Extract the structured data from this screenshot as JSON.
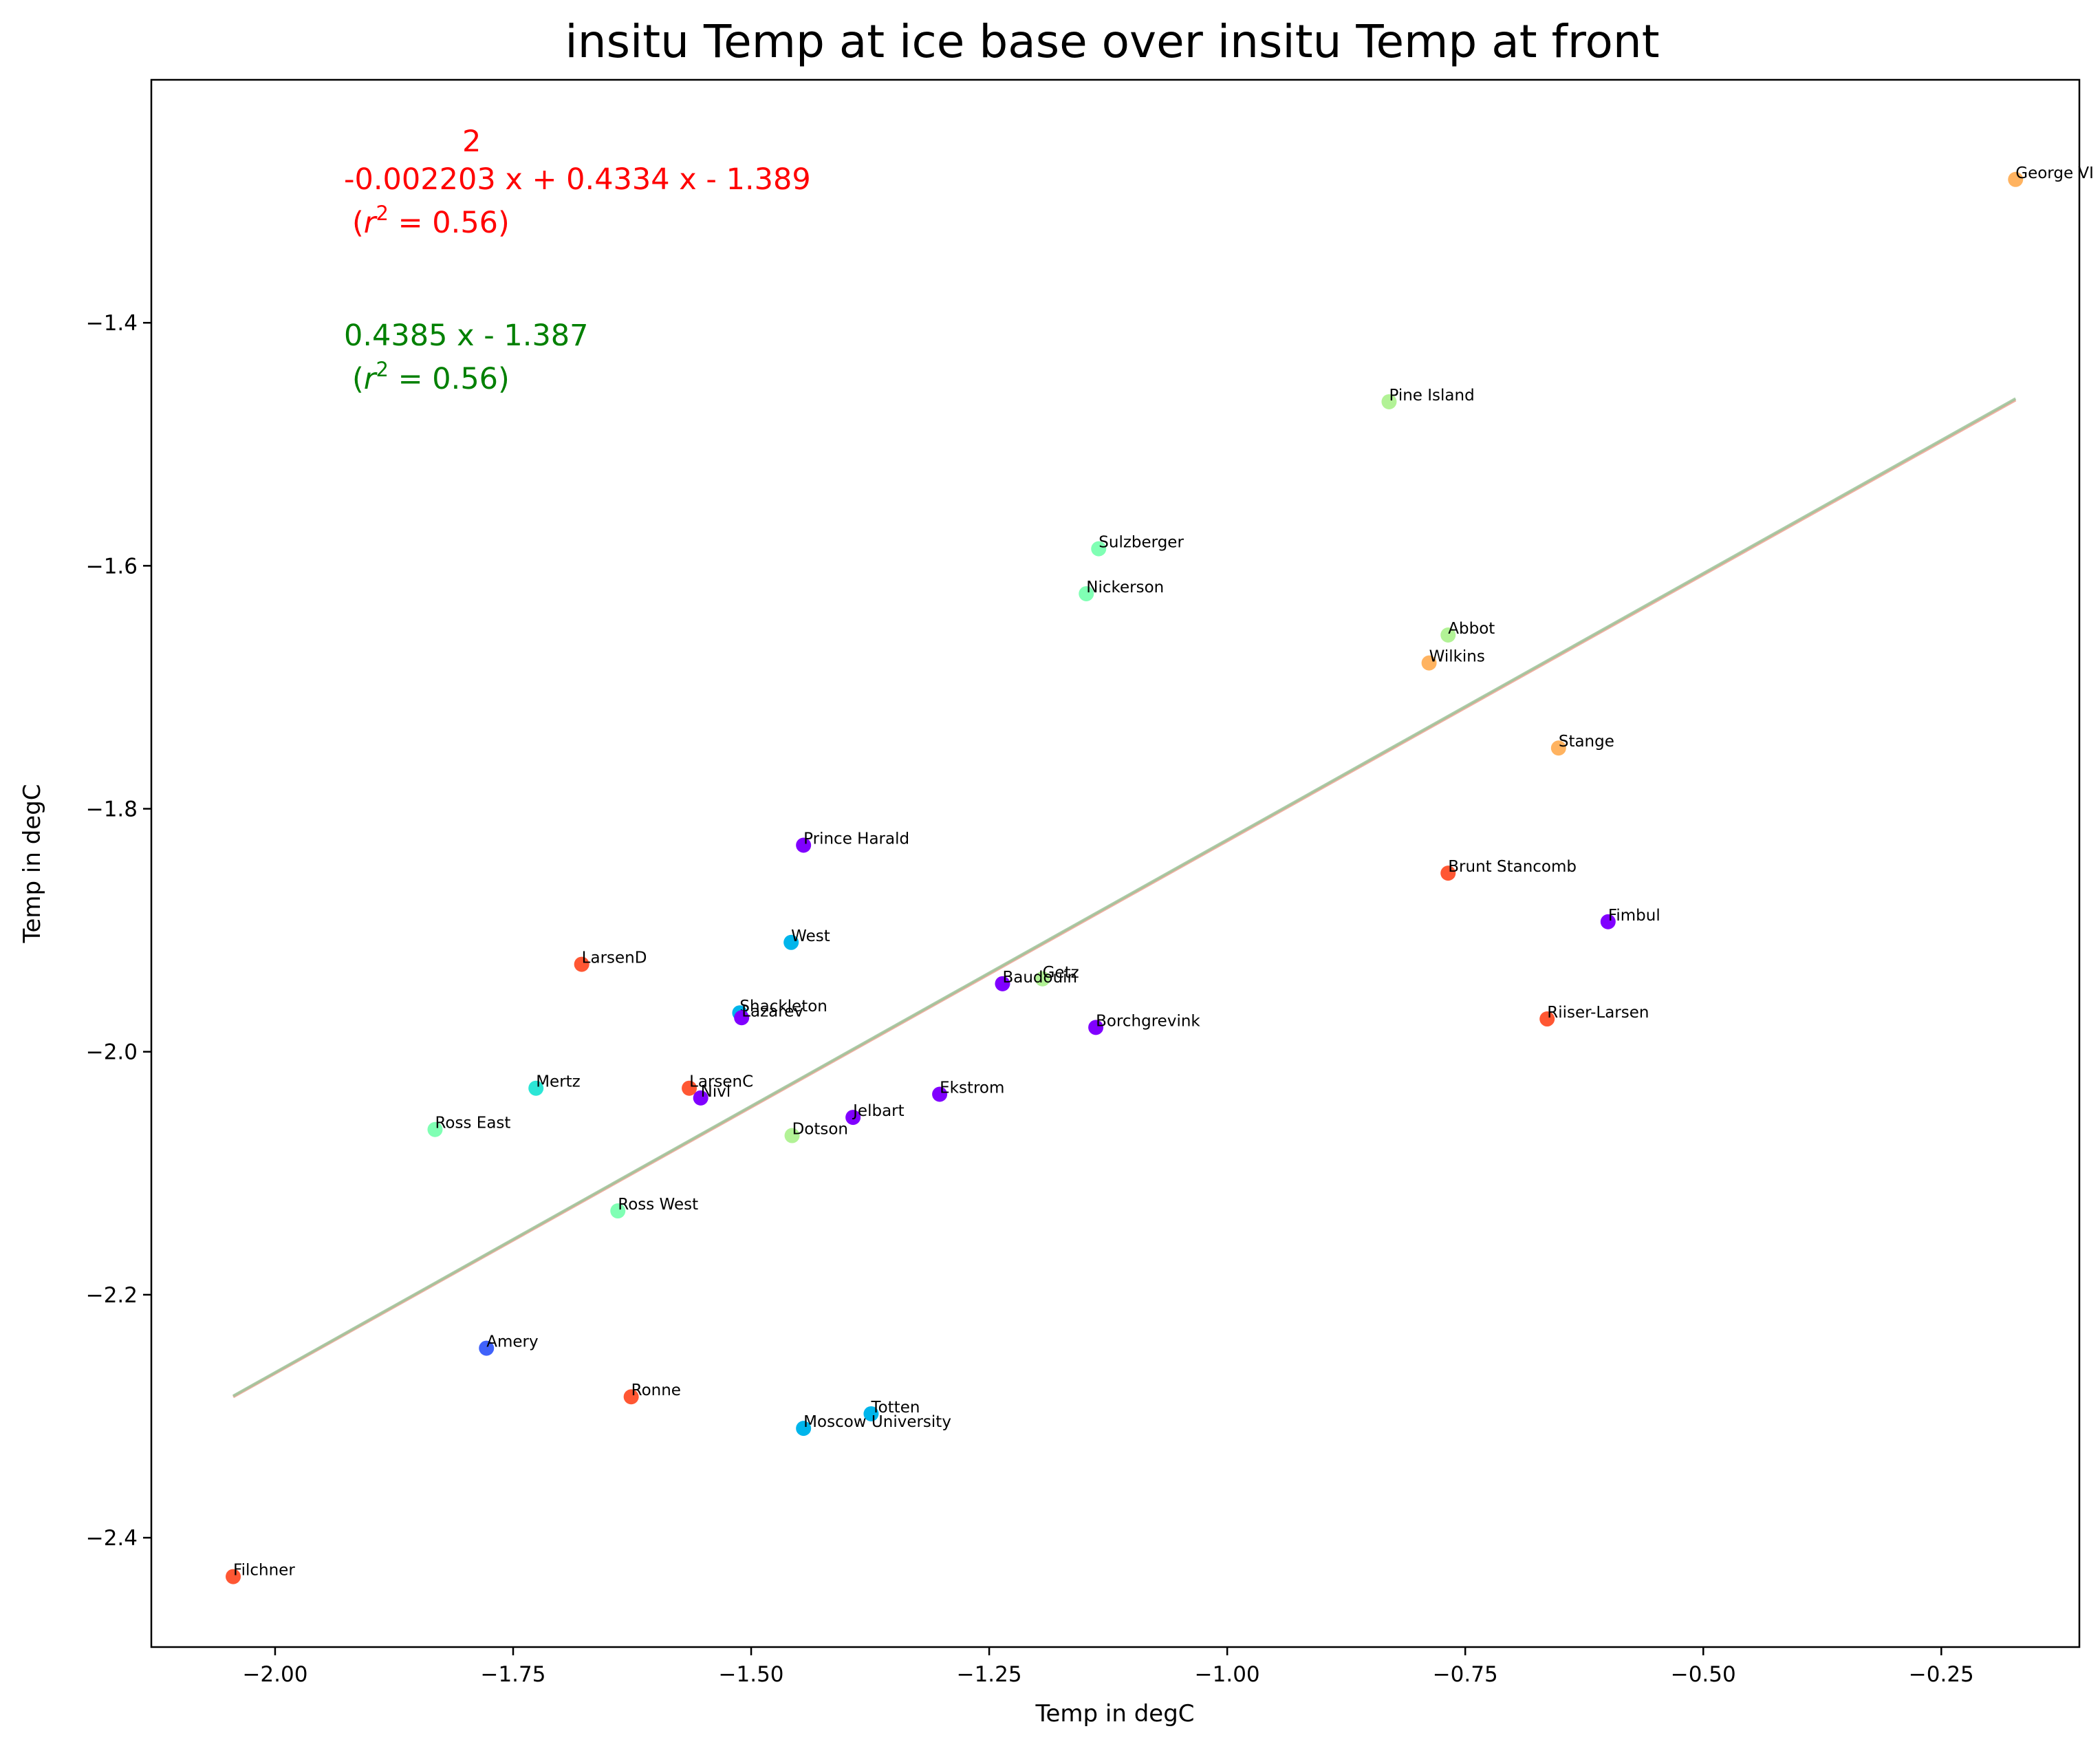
{
  "chart_data": {
    "type": "scatter",
    "title": "insitu Temp at ice base over insitu Temp at front",
    "xlabel": "Temp in degC",
    "ylabel": "Temp in degC",
    "xlim": [
      -2.13,
      -0.105
    ],
    "ylim": [
      -2.49,
      -1.2
    ],
    "xticks": [
      -2.0,
      -1.75,
      -1.5,
      -1.25,
      -1.0,
      -0.75,
      -0.5,
      -0.25
    ],
    "xtick_labels": [
      "−2.00",
      "−1.75",
      "−1.50",
      "−1.25",
      "−1.00",
      "−0.75",
      "−0.50",
      "−0.25"
    ],
    "yticks": [
      -2.4,
      -2.2,
      -2.0,
      -1.8,
      -1.6,
      -1.4
    ],
    "ytick_labels": [
      "−2.4",
      "−2.2",
      "−2.0",
      "−1.8",
      "−1.6",
      "−1.4"
    ],
    "grid": false,
    "points": [
      {
        "label": "George VI",
        "x": -0.172,
        "y": -1.282,
        "color": "#ffb360"
      },
      {
        "label": "Pine Island",
        "x": -0.83,
        "y": -1.465,
        "color": "#b2f296"
      },
      {
        "label": "Sulzberger",
        "x": -1.135,
        "y": -1.586,
        "color": "#80ffb4"
      },
      {
        "label": "Nickerson",
        "x": -1.148,
        "y": -1.623,
        "color": "#80ffb4"
      },
      {
        "label": "Abbot",
        "x": -0.768,
        "y": -1.657,
        "color": "#b2f296"
      },
      {
        "label": "Wilkins",
        "x": -0.788,
        "y": -1.68,
        "color": "#ffb360"
      },
      {
        "label": "Stange",
        "x": -0.652,
        "y": -1.75,
        "color": "#ffb360"
      },
      {
        "label": "Prince Harald",
        "x": -1.445,
        "y": -1.83,
        "color": "#8000ff"
      },
      {
        "label": "Brunt Stancomb",
        "x": -0.768,
        "y": -1.853,
        "color": "#ff5733"
      },
      {
        "label": "Fimbul",
        "x": -0.6,
        "y": -1.893,
        "color": "#8000ff"
      },
      {
        "label": "West",
        "x": -1.458,
        "y": -1.91,
        "color": "#00b5eb"
      },
      {
        "label": "LarsenD",
        "x": -1.678,
        "y": -1.928,
        "color": "#ff5733"
      },
      {
        "label": "Getz",
        "x": -1.194,
        "y": -1.94,
        "color": "#b2f296"
      },
      {
        "label": "Baudouin",
        "x": -1.236,
        "y": -1.944,
        "color": "#8000ff"
      },
      {
        "label": "Shackleton",
        "x": -1.512,
        "y": -1.968,
        "color": "#00b5eb"
      },
      {
        "label": "Lazarev",
        "x": -1.51,
        "y": -1.972,
        "color": "#8000ff"
      },
      {
        "label": "Riiser-Larsen",
        "x": -0.664,
        "y": -1.973,
        "color": "#ff5733"
      },
      {
        "label": "Borchgrevink",
        "x": -1.138,
        "y": -1.98,
        "color": "#8000ff"
      },
      {
        "label": "Mertz",
        "x": -1.726,
        "y": -2.03,
        "color": "#2ce6d6"
      },
      {
        "label": "LarsenC",
        "x": -1.565,
        "y": -2.03,
        "color": "#ff5733"
      },
      {
        "label": "Nivl",
        "x": -1.553,
        "y": -2.038,
        "color": "#8000ff"
      },
      {
        "label": "Ekstrom",
        "x": -1.302,
        "y": -2.035,
        "color": "#8000ff"
      },
      {
        "label": "Jelbart",
        "x": -1.393,
        "y": -2.054,
        "color": "#8000ff"
      },
      {
        "label": "Ross East",
        "x": -1.832,
        "y": -2.064,
        "color": "#80ffb4"
      },
      {
        "label": "Dotson",
        "x": -1.457,
        "y": -2.069,
        "color": "#b2f296"
      },
      {
        "label": "Ross West",
        "x": -1.64,
        "y": -2.131,
        "color": "#80ffb4"
      },
      {
        "label": "Amery",
        "x": -1.778,
        "y": -2.244,
        "color": "#4062fa"
      },
      {
        "label": "Ronne",
        "x": -1.626,
        "y": -2.284,
        "color": "#ff5733"
      },
      {
        "label": "Totten",
        "x": -1.374,
        "y": -2.298,
        "color": "#00b5eb"
      },
      {
        "label": "Moscow University",
        "x": -1.445,
        "y": -2.31,
        "color": "#00b5eb"
      },
      {
        "label": "Filchner",
        "x": -2.044,
        "y": -2.432,
        "color": "#ff5733"
      }
    ],
    "fit_lines": [
      {
        "x_start": -2.044,
        "x_end": -0.172,
        "coeffs_poly2": [
          -0.002203,
          0.4334,
          -1.389
        ],
        "color": "#f0a090"
      },
      {
        "x_start": -2.044,
        "x_end": -0.172,
        "coeffs_linear": [
          0.4385,
          -1.387
        ],
        "color": "#9cc49a"
      }
    ]
  },
  "annotations": {
    "red_fit": {
      "exponent": "2",
      "equation": "-0.002203 x + 0.4334 x - 1.389",
      "r2_prefix": "(",
      "r2_var": "r",
      "r2_sup": "2",
      "r2_suffix": " = 0.56)",
      "color": "#ff0000"
    },
    "green_fit": {
      "equation": "0.4385 x - 1.387",
      "r2_prefix": "(",
      "r2_var": "r",
      "r2_sup": "2",
      "r2_suffix": " = 0.56)",
      "color": "#008000"
    }
  }
}
